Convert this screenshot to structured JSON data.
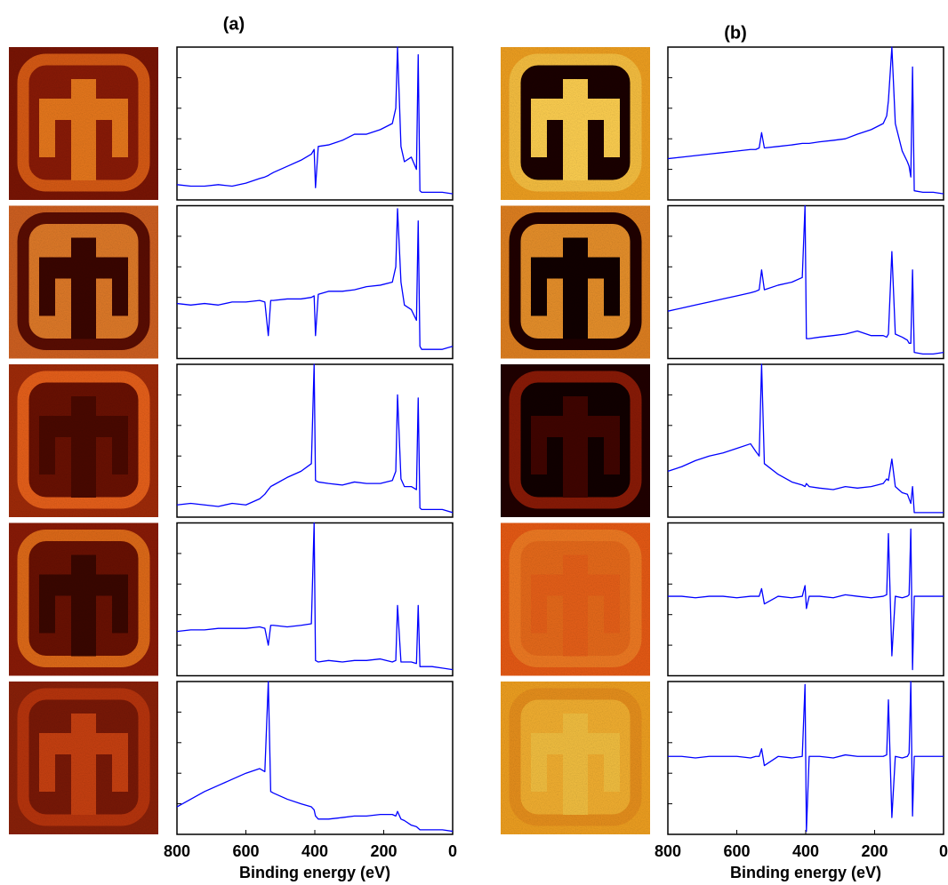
{
  "figure_labels": [
    "(a)",
    "(b)"
  ],
  "chart_data": [
    {
      "type": "line",
      "x": [
        800,
        760,
        720,
        680,
        640,
        600,
        560,
        545,
        535,
        528,
        520,
        480,
        440,
        410,
        402,
        398,
        390,
        360,
        320,
        285,
        250,
        210,
        175,
        165,
        160,
        150,
        140,
        120,
        105,
        100,
        95,
        90,
        85,
        60,
        30,
        0
      ],
      "series": [
        {
          "color": "#0000ff",
          "values": [
            1,
            0.9,
            0.9,
            1,
            0.9,
            1.1,
            1.4,
            1.5,
            1.6,
            1.7,
            1.8,
            2.2,
            2.6,
            3.0,
            3.3,
            0.8,
            3.5,
            3.6,
            3.9,
            4.3,
            4.3,
            4.6,
            5,
            6,
            10,
            3.5,
            2.5,
            2.8,
            2,
            9.5,
            0.6,
            0.5,
            0.5,
            0.5,
            0.5,
            0.4
          ]
        }
      ],
      "xlim": [
        800,
        0
      ],
      "ylim": [
        0,
        10
      ],
      "yticks": [
        2,
        4,
        6,
        8
      ]
    },
    {
      "type": "line",
      "x": [
        800,
        760,
        720,
        680,
        640,
        600,
        560,
        545,
        535,
        528,
        520,
        480,
        440,
        410,
        402,
        398,
        390,
        360,
        320,
        285,
        250,
        210,
        175,
        165,
        160,
        150,
        140,
        120,
        105,
        100,
        95,
        90,
        85,
        60,
        30,
        0
      ],
      "series": [
        {
          "color": "#0000ff",
          "values": [
            3.6,
            3.5,
            3.6,
            3.5,
            3.7,
            3.7,
            3.8,
            3.7,
            1.5,
            3.8,
            3.8,
            3.9,
            3.9,
            4.0,
            4.1,
            1.5,
            4.2,
            4.4,
            4.4,
            4.5,
            4.7,
            4.8,
            5.0,
            6,
            9.8,
            5,
            3.5,
            3.2,
            2.5,
            9,
            0.8,
            0.6,
            0.6,
            0.6,
            0.6,
            0.8
          ]
        }
      ],
      "xlim": [
        800,
        0
      ],
      "ylim": [
        0,
        10
      ],
      "yticks": [
        2,
        4,
        6,
        8
      ]
    },
    {
      "type": "line",
      "x": [
        800,
        760,
        720,
        680,
        640,
        600,
        560,
        545,
        535,
        528,
        520,
        480,
        440,
        410,
        402,
        398,
        390,
        360,
        320,
        285,
        250,
        210,
        175,
        165,
        160,
        150,
        140,
        120,
        105,
        100,
        95,
        90,
        85,
        60,
        30,
        0
      ],
      "series": [
        {
          "color": "#0000ff",
          "values": [
            0.8,
            0.9,
            0.8,
            0.7,
            0.9,
            0.8,
            1.2,
            1.5,
            1.8,
            2.0,
            2.1,
            2.6,
            3.0,
            3.5,
            10,
            2.4,
            2.3,
            2.2,
            2.1,
            2.3,
            2.2,
            2.2,
            2.4,
            3,
            8,
            2.5,
            2.0,
            2.0,
            1.8,
            7.8,
            0.6,
            0.5,
            0.5,
            0.5,
            0.5,
            0.3
          ]
        }
      ],
      "xlim": [
        800,
        0
      ],
      "ylim": [
        0,
        10
      ],
      "yticks": [
        2,
        4,
        6,
        8
      ]
    },
    {
      "type": "line",
      "x": [
        800,
        760,
        720,
        680,
        640,
        600,
        560,
        545,
        535,
        528,
        520,
        480,
        440,
        410,
        402,
        398,
        390,
        360,
        320,
        285,
        250,
        210,
        175,
        165,
        160,
        150,
        140,
        120,
        105,
        100,
        95,
        90,
        85,
        60,
        30,
        0
      ],
      "series": [
        {
          "color": "#0000ff",
          "values": [
            2.9,
            3.0,
            3.0,
            3.1,
            3.1,
            3.1,
            3.2,
            3.1,
            2.0,
            3.3,
            3.3,
            3.2,
            3.3,
            3.4,
            10,
            1.0,
            0.9,
            1.0,
            0.9,
            1.0,
            1.0,
            1.1,
            0.9,
            1,
            4.6,
            0.9,
            0.9,
            0.9,
            0.8,
            4.6,
            0.6,
            0.6,
            0.6,
            0.6,
            0.5,
            0.4
          ]
        }
      ],
      "xlim": [
        800,
        0
      ],
      "ylim": [
        0,
        10
      ],
      "yticks": [
        2,
        4,
        6,
        8
      ]
    },
    {
      "type": "line",
      "x": [
        800,
        760,
        720,
        680,
        640,
        600,
        560,
        545,
        535,
        528,
        520,
        480,
        440,
        410,
        402,
        398,
        390,
        360,
        320,
        285,
        250,
        210,
        175,
        165,
        160,
        150,
        140,
        120,
        105,
        100,
        95,
        90,
        85,
        60,
        30,
        0
      ],
      "series": [
        {
          "color": "#0000ff",
          "values": [
            1.8,
            2.3,
            2.8,
            3.2,
            3.6,
            4.0,
            4.3,
            4.1,
            10,
            2.8,
            2.7,
            2.3,
            2.0,
            1.8,
            1.6,
            1.2,
            1.0,
            1.0,
            1.1,
            1.2,
            1.2,
            1.3,
            1.3,
            1.2,
            1.5,
            1.0,
            0.9,
            0.6,
            0.5,
            0.4,
            0.3,
            0.3,
            0.3,
            0.3,
            0.3,
            0.2
          ]
        }
      ],
      "xlim": [
        800,
        0
      ],
      "ylim": [
        0,
        10
      ],
      "yticks": [
        2,
        4,
        6,
        8
      ],
      "xticks": [
        800,
        600,
        400,
        200,
        0
      ],
      "xlabel": "Binding energy (eV)"
    },
    {
      "type": "line",
      "x": [
        800,
        760,
        720,
        680,
        640,
        600,
        560,
        545,
        535,
        528,
        520,
        480,
        440,
        410,
        402,
        398,
        390,
        360,
        320,
        285,
        250,
        210,
        175,
        165,
        160,
        150,
        140,
        120,
        105,
        100,
        95,
        90,
        85,
        60,
        30,
        0
      ],
      "series": [
        {
          "color": "#0000ff",
          "values": [
            2.7,
            2.8,
            2.9,
            3.0,
            3.1,
            3.2,
            3.3,
            3.3,
            3.4,
            4.4,
            3.4,
            3.5,
            3.6,
            3.7,
            3.7,
            3.7,
            3.7,
            3.8,
            3.9,
            4.0,
            4.3,
            4.6,
            5.0,
            5.5,
            6.5,
            10,
            5,
            3.2,
            2.5,
            2.2,
            1.5,
            8.7,
            0.6,
            0.5,
            0.5,
            0.4
          ]
        }
      ],
      "xlim": [
        800,
        0
      ],
      "ylim": [
        0,
        10
      ],
      "yticks": [
        2,
        4,
        6,
        8
      ]
    },
    {
      "type": "line",
      "x": [
        800,
        760,
        720,
        680,
        640,
        600,
        560,
        545,
        535,
        528,
        520,
        480,
        440,
        410,
        402,
        398,
        390,
        360,
        320,
        285,
        250,
        210,
        175,
        165,
        160,
        150,
        140,
        120,
        105,
        100,
        95,
        90,
        85,
        60,
        30,
        0
      ],
      "series": [
        {
          "color": "#0000ff",
          "values": [
            3.1,
            3.3,
            3.5,
            3.7,
            3.9,
            4.1,
            4.3,
            4.4,
            4.5,
            5.8,
            4.5,
            4.8,
            5.0,
            5.3,
            10,
            1.3,
            1.3,
            1.4,
            1.5,
            1.6,
            1.8,
            1.5,
            1.5,
            1.4,
            1.6,
            7,
            1.6,
            1.4,
            1.2,
            1.0,
            1.0,
            5.8,
            0.4,
            0.3,
            0.3,
            0.4
          ]
        }
      ],
      "xlim": [
        800,
        0
      ],
      "ylim": [
        0,
        10
      ],
      "yticks": [
        2,
        4,
        6,
        8
      ]
    },
    {
      "type": "line",
      "x": [
        800,
        760,
        720,
        680,
        640,
        600,
        560,
        545,
        535,
        528,
        520,
        480,
        440,
        410,
        402,
        398,
        390,
        360,
        320,
        285,
        250,
        210,
        175,
        165,
        160,
        150,
        140,
        120,
        105,
        100,
        95,
        90,
        85,
        60,
        30,
        0
      ],
      "series": [
        {
          "color": "#0000ff",
          "values": [
            3.0,
            3.3,
            3.7,
            4.0,
            4.2,
            4.5,
            4.8,
            4.3,
            4.0,
            10,
            3.5,
            2.8,
            2.3,
            2.1,
            2.0,
            2.2,
            2.0,
            1.9,
            1.8,
            2.0,
            1.9,
            2.0,
            2.2,
            2.5,
            2.4,
            3.8,
            2.0,
            1.6,
            1.5,
            1.2,
            0.9,
            2.0,
            0.3,
            0.3,
            0.3,
            0.3
          ]
        }
      ],
      "xlim": [
        800,
        0
      ],
      "ylim": [
        0,
        10
      ],
      "yticks": [
        2,
        4,
        6,
        8
      ]
    },
    {
      "type": "line",
      "x": [
        800,
        760,
        720,
        680,
        640,
        600,
        560,
        545,
        535,
        528,
        520,
        480,
        440,
        410,
        402,
        398,
        390,
        360,
        320,
        285,
        250,
        210,
        175,
        165,
        160,
        150,
        140,
        120,
        105,
        100,
        95,
        90,
        85,
        60,
        30,
        0
      ],
      "series": [
        {
          "color": "#0000ff",
          "values": [
            5.2,
            5.2,
            5.1,
            5.2,
            5.2,
            5.1,
            5.2,
            5.2,
            5.2,
            5.7,
            4.7,
            5.2,
            5.1,
            5.2,
            5.9,
            4.4,
            5.2,
            5.2,
            5.1,
            5.3,
            5.2,
            5.1,
            5.2,
            5.3,
            9.3,
            1.3,
            5.2,
            5.1,
            5.2,
            5.3,
            9.6,
            0.4,
            5.2,
            5.2,
            5.2,
            5.2
          ]
        }
      ],
      "xlim": [
        800,
        0
      ],
      "ylim": [
        0,
        10
      ],
      "yticks": [
        2,
        4,
        6,
        8
      ]
    },
    {
      "type": "line",
      "x": [
        800,
        760,
        720,
        680,
        640,
        600,
        560,
        545,
        535,
        528,
        520,
        480,
        440,
        410,
        402,
        398,
        390,
        360,
        320,
        285,
        250,
        210,
        175,
        165,
        160,
        150,
        140,
        120,
        105,
        100,
        95,
        90,
        85,
        60,
        30,
        0
      ],
      "series": [
        {
          "color": "#0000ff",
          "values": [
            5.1,
            5.1,
            5.0,
            5.1,
            5.1,
            5.1,
            5.0,
            5.1,
            5.1,
            5.6,
            4.5,
            5.1,
            5.0,
            5.1,
            9.8,
            0.2,
            5.1,
            5.1,
            5.0,
            5.2,
            5.1,
            5.1,
            5.1,
            5.2,
            8.8,
            1.1,
            5.1,
            5.0,
            5.1,
            5.3,
            10,
            1.2,
            5.1,
            5.1,
            5.1,
            5.1
          ]
        }
      ],
      "xlim": [
        800,
        0
      ],
      "ylim": [
        0,
        10
      ],
      "yticks": [
        2,
        4,
        6,
        8
      ],
      "xticks": [
        800,
        600,
        400,
        200,
        0
      ],
      "xlabel": "Binding energy (eV)"
    }
  ]
}
